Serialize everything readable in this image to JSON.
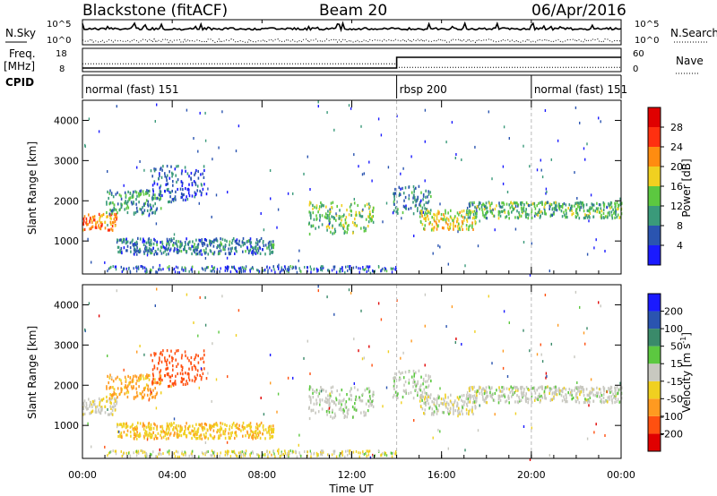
{
  "header": {
    "station": "Blackstone (fitACF)",
    "beam": "Beam 20",
    "date": "06/Apr/2016"
  },
  "top_panels": {
    "nsky_label": "N.Sky",
    "nsky_ticks": [
      "10^5",
      "10^0"
    ],
    "nsearch_label": "N.Search",
    "nsearch_ticks": [
      "10^5",
      "10^0"
    ],
    "freq_label_1": "Freq.",
    "freq_label_2": "[MHz]",
    "freq_ticks": [
      "18",
      "8"
    ],
    "nave_label": "Nave",
    "nave_ticks": [
      "60",
      "0"
    ],
    "cpid_label": "CPID"
  },
  "cpid_segments": [
    {
      "label": "normal (fast) 151",
      "start": 0,
      "end": 14
    },
    {
      "label": "rbsp 200",
      "start": 14,
      "end": 20
    },
    {
      "label": "normal (fast) 151",
      "start": 20,
      "end": 24
    }
  ],
  "power_panel": {
    "ylabel": "Slant Range [km]",
    "yticks": [
      "1000",
      "2000",
      "3000",
      "4000"
    ],
    "colorbar_label": "Power [dB]",
    "colorbar_ticks": [
      "4",
      "8",
      "12",
      "16",
      "20",
      "24",
      "28"
    ],
    "colors": [
      "#1a1aff",
      "#2a54b0",
      "#3a9a7a",
      "#5cc840",
      "#f0d020",
      "#ff8c10",
      "#ff3010",
      "#e00000"
    ]
  },
  "velocity_panel": {
    "ylabel": "Slant Range [km]",
    "yticks": [
      "1000",
      "2000",
      "3000",
      "4000"
    ],
    "colorbar_label_main": "Velocity [m s",
    "colorbar_label_sup": "-1",
    "colorbar_label_end": "]",
    "colorbar_ticks": [
      "-200",
      "-100",
      "-50",
      "-15",
      "15",
      "50",
      "100",
      "200"
    ],
    "colors": [
      "#e00000",
      "#ff5010",
      "#ff9a20",
      "#f0d020",
      "#c8c8c0",
      "#5cc840",
      "#3a8a6a",
      "#2a54b0",
      "#1a1aff"
    ]
  },
  "x_axis": {
    "label": "Time UT",
    "ticks": [
      "00:00",
      "04:00",
      "08:00",
      "12:00",
      "16:00",
      "20:00",
      "00:00"
    ]
  },
  "chart_data": {
    "type": "heatmap",
    "title": "Blackstone (fitACF)",
    "subtitle": "Beam 20",
    "xlabel": "Time UT",
    "ylabel": "Slant Range [km]",
    "x_range_hours": [
      0,
      24
    ],
    "y_range_km": [
      180,
      4500
    ],
    "freq_mhz": [
      {
        "t0": 0,
        "t1": 14,
        "value": 10
      },
      {
        "t0": 14,
        "t1": 24,
        "value": 16
      }
    ],
    "nave": [
      {
        "t0": 0,
        "t1": 14,
        "value": 20
      },
      {
        "t0": 14,
        "t1": 24,
        "value": 8
      }
    ],
    "echo_regions": [
      {
        "t0": 0.0,
        "t1": 1.5,
        "r0": 1300,
        "r1": 1700,
        "power_db": 22,
        "velocity": -10
      },
      {
        "t0": 1.0,
        "t1": 3.5,
        "r0": 1700,
        "r1": 2300,
        "power_db": 10,
        "velocity": -60
      },
      {
        "t0": 3.0,
        "t1": 5.5,
        "r0": 2000,
        "r1": 2900,
        "power_db": 6,
        "velocity": -120
      },
      {
        "t0": 1.5,
        "t1": 8.5,
        "r0": 700,
        "r1": 1100,
        "power_db": 8,
        "velocity": -40
      },
      {
        "t0": 10.0,
        "t1": 13.0,
        "r0": 1200,
        "r1": 2000,
        "power_db": 14,
        "velocity": 5
      },
      {
        "t0": 13.8,
        "t1": 15.5,
        "r0": 1700,
        "r1": 2400,
        "power_db": 8,
        "velocity": 5
      },
      {
        "t0": 15.0,
        "t1": 17.5,
        "r0": 1300,
        "r1": 1800,
        "power_db": 18,
        "velocity": 0
      },
      {
        "t0": 17.0,
        "t1": 24.0,
        "r0": 1600,
        "r1": 2000,
        "power_db": 12,
        "velocity": 0
      }
    ]
  }
}
